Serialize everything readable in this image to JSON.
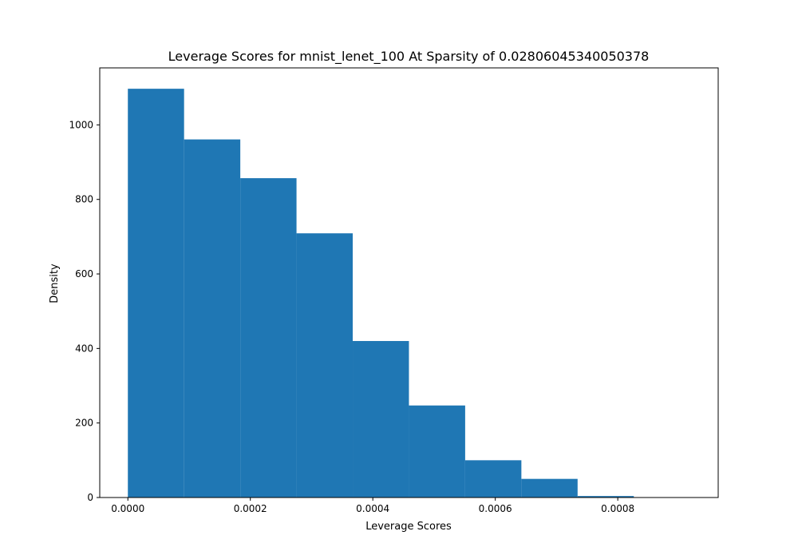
{
  "chart_data": {
    "type": "bar",
    "title": "Leverage Scores for mnist_lenet_100 At Sparsity of 0.02806045340050378",
    "xlabel": "Leverage Scores",
    "ylabel": "Density",
    "bar_color": "#1f77b4",
    "grid": false,
    "xlim": [
      -4.59e-05,
      0.000964
    ],
    "ylim": [
      0,
      1153
    ],
    "xticks": [
      0.0,
      0.0002,
      0.0004,
      0.0006,
      0.0008
    ],
    "xtick_labels": [
      "0.0000",
      "0.0002",
      "0.0004",
      "0.0006",
      "0.0008"
    ],
    "yticks": [
      0,
      200,
      400,
      600,
      800,
      1000
    ],
    "ytick_labels": [
      "0",
      "200",
      "400",
      "600",
      "800",
      "1000"
    ],
    "bins": [
      {
        "x0": 0.0,
        "x1": 9.18e-05,
        "value": 1097
      },
      {
        "x0": 9.18e-05,
        "x1": 0.0001836,
        "value": 961
      },
      {
        "x0": 0.0001836,
        "x1": 0.0002754,
        "value": 857
      },
      {
        "x0": 0.0002754,
        "x1": 0.0003672,
        "value": 709
      },
      {
        "x0": 0.0003672,
        "x1": 0.000459,
        "value": 420
      },
      {
        "x0": 0.000459,
        "x1": 0.0005508,
        "value": 247
      },
      {
        "x0": 0.0005508,
        "x1": 0.0006426,
        "value": 100
      },
      {
        "x0": 0.0006426,
        "x1": 0.0007344,
        "value": 50
      },
      {
        "x0": 0.0007344,
        "x1": 0.0008262,
        "value": 4
      },
      {
        "x0": 0.0008262,
        "x1": 0.000918,
        "value": 1
      }
    ]
  }
}
